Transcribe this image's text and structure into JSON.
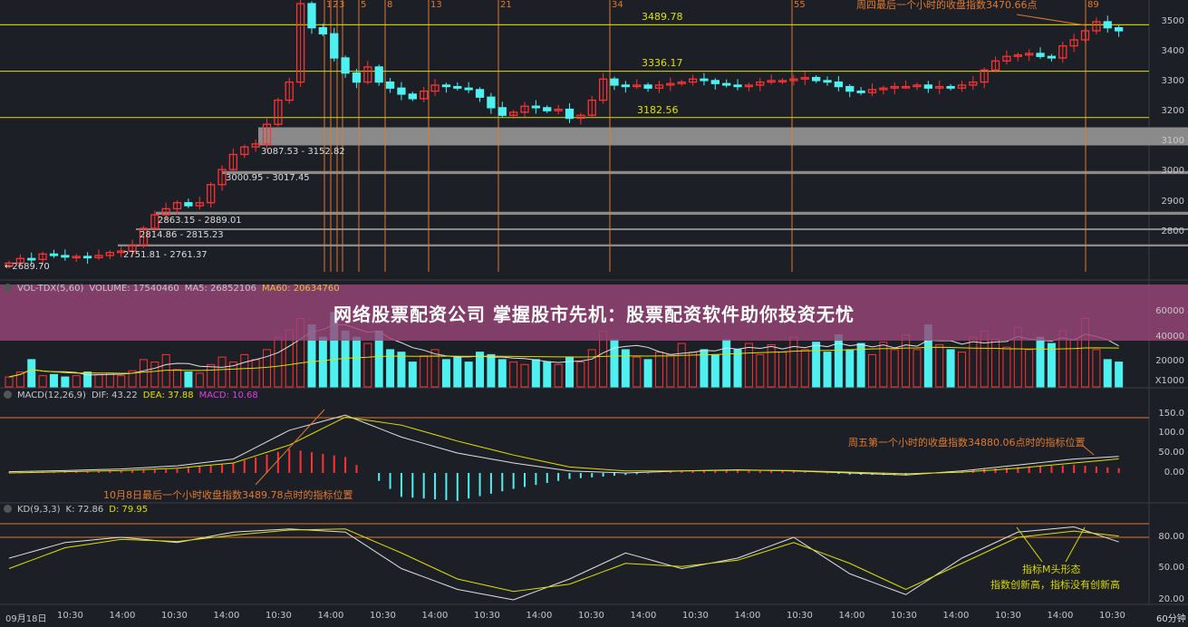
{
  "colors": {
    "up": "#ff3333",
    "down": "#4ff0f0",
    "ma": "#e0e000",
    "white": "#e0e0e0",
    "fib": "#e07a30",
    "annot": "#e07a30",
    "kd_annot": "#d8d800"
  },
  "banner": "网络股票配资公司 掌握股市先机：股票配资软件助你投资无忧",
  "main": {
    "price_levels": [
      {
        "label": "3489.78",
        "value": 3489.78
      },
      {
        "label": "3336.17",
        "value": 3336.17
      },
      {
        "label": "3182.56",
        "value": 3182.56
      }
    ],
    "gap_labels": [
      "3087.53 - 3152.82",
      "3000.95 - 3017.45",
      "2863.15 - 2889.01",
      "2814.86 - 2815.23",
      "2751.81 - 2761.37"
    ],
    "low_label": "←2689.70",
    "fib_labels": [
      "1",
      "2",
      "3",
      "5",
      "8",
      "13",
      "21",
      "34",
      "55",
      "89"
    ],
    "annotation": "周四最后一个小时的收盘指数3470.66点",
    "y_ticks": [
      "3500",
      "3400",
      "3300",
      "3200",
      "3100",
      "3000",
      "2900",
      "2800"
    ]
  },
  "volume": {
    "name": "VOL-TDX(5,60)",
    "volume": "VOLUME: 17540460",
    "ma5": "MA5: 26852106",
    "ma60": "MA60: 20634760",
    "y_ticks": [
      "60000",
      "40000",
      "20000",
      "X1000"
    ]
  },
  "macd": {
    "name": "MACD(12,26,9)",
    "dif": "DIF: 43.22",
    "dea": "DEA: 37.88",
    "macd": "MACD: 10.68",
    "annotation_left": "10月8日最后一个小时收盘指数3489.78点时的指标位置",
    "annotation_right": "周五第一个小时的收盘指数34880.06点时的指标位置",
    "y_ticks": [
      "150.0",
      "100.0",
      "50.00",
      "0.00"
    ]
  },
  "kd": {
    "name": "KD(9,3,3)",
    "k": "K: 72.86",
    "d": "D: 79.95",
    "annotation_1": "指标M头形态",
    "annotation_2": "指数创新高，指标没有创新高",
    "y_ticks": [
      "80.00",
      "50.00",
      "20.00"
    ]
  },
  "time_axis": [
    "09月18日",
    "10:30",
    "14:00",
    "10:30",
    "14:00",
    "10:30",
    "14:00",
    "10:30",
    "14:00",
    "10:30",
    "14:00",
    "10:30",
    "14:00",
    "10:30",
    "14:00",
    "10:30",
    "14:00",
    "10:30",
    "14:00",
    "10:30",
    "14:00",
    "10:30"
  ],
  "period": "60分钟",
  "chart_data": {
    "type": "candlestick",
    "price_axis": [
      2700,
      3550
    ],
    "closes": [
      2700,
      2715,
      2712,
      2730,
      2725,
      2720,
      2722,
      2718,
      2725,
      2735,
      2740,
      2758,
      2815,
      2860,
      2880,
      2900,
      2890,
      2900,
      2960,
      3010,
      3060,
      3085,
      3095,
      3160,
      3240,
      3300,
      3560,
      3480,
      3460,
      3380,
      3330,
      3300,
      3350,
      3300,
      3280,
      3260,
      3245,
      3270,
      3290,
      3285,
      3280,
      3275,
      3250,
      3215,
      3190,
      3200,
      3220,
      3215,
      3205,
      3210,
      3180,
      3190,
      3240,
      3310,
      3290,
      3285,
      3290,
      3280,
      3290,
      3295,
      3300,
      3310,
      3305,
      3295,
      3290,
      3285,
      3290,
      3300,
      3305,
      3305,
      3310,
      3315,
      3305,
      3300,
      3285,
      3270,
      3265,
      3275,
      3280,
      3285,
      3285,
      3290,
      3280,
      3285,
      3280,
      3290,
      3300,
      3340,
      3370,
      3385,
      3390,
      3395,
      3385,
      3380,
      3420,
      3440,
      3470,
      3500,
      3480,
      3470
    ],
    "volume_thousands": [
      8000,
      12000,
      22000,
      9000,
      10000,
      8000,
      9000,
      12000,
      10000,
      11000,
      9000,
      13000,
      22000,
      20000,
      26000,
      14000,
      12000,
      11000,
      18000,
      24000,
      20000,
      26000,
      22000,
      30000,
      40000,
      46000,
      55000,
      50000,
      40000,
      60000,
      45000,
      40000,
      35000,
      45000,
      30000,
      28000,
      20000,
      25000,
      30000,
      22000,
      24000,
      20000,
      28000,
      26000,
      22000,
      20000,
      18000,
      22000,
      20000,
      18000,
      24000,
      20000,
      30000,
      45000,
      38000,
      30000,
      24000,
      22000,
      28000,
      26000,
      35000,
      28000,
      30000,
      26000,
      38000,
      30000,
      35000,
      26000,
      34000,
      28000,
      40000,
      30000,
      36000,
      28000,
      42000,
      30000,
      35000,
      26000,
      36000,
      30000,
      42000,
      30000,
      50000,
      34000,
      30000,
      28000,
      40000,
      45000,
      38000,
      32000,
      48000,
      30000,
      40000,
      35000,
      45000,
      38000,
      55000,
      30000,
      22000,
      20000
    ],
    "macd_dif": [
      3,
      6,
      10,
      18,
      35,
      107,
      145,
      90,
      50,
      25,
      5,
      0,
      5,
      8,
      5,
      0,
      -5,
      5,
      20,
      35,
      43
    ],
    "macd_dea": [
      0,
      3,
      6,
      12,
      25,
      70,
      140,
      120,
      80,
      45,
      15,
      5,
      5,
      7,
      6,
      2,
      -2,
      2,
      12,
      25,
      38
    ],
    "macd_hist": [
      3,
      4,
      5,
      10,
      25,
      60,
      40,
      -60,
      -70,
      -40,
      -15,
      -5,
      5,
      6,
      4,
      -4,
      -6,
      6,
      15,
      20,
      10
    ],
    "kd_k": [
      60,
      75,
      80,
      75,
      85,
      88,
      85,
      50,
      30,
      20,
      40,
      65,
      50,
      60,
      80,
      45,
      25,
      60,
      85,
      90,
      72
    ],
    "kd_d": [
      50,
      70,
      78,
      76,
      82,
      87,
      88,
      65,
      40,
      28,
      35,
      55,
      52,
      58,
      75,
      55,
      30,
      55,
      80,
      86,
      80
    ]
  }
}
